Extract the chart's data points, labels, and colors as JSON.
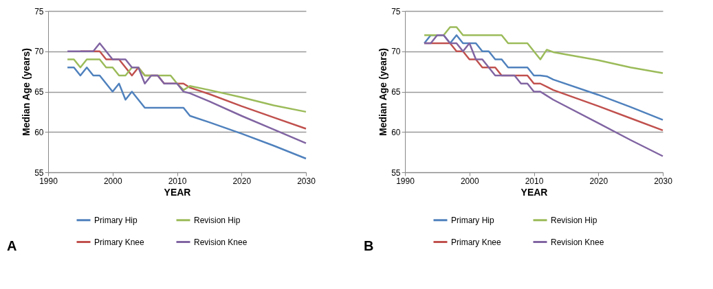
{
  "chart_data": [
    {
      "type": "line",
      "xlabel": "YEAR",
      "ylabel": "Median Age (years)",
      "xlim": [
        1990,
        2030
      ],
      "xticks": [
        1990,
        2000,
        2010,
        2020,
        2030
      ],
      "ylim": [
        55,
        75
      ],
      "yticks": [
        55,
        60,
        65,
        70,
        75
      ],
      "grid": "y",
      "legend": "bottom",
      "marker": "none",
      "line_style": "solid",
      "annotations": [
        "A"
      ],
      "x": [
        1993,
        1994,
        1995,
        1996,
        1997,
        1998,
        1999,
        2000,
        2001,
        2002,
        2003,
        2004,
        2005,
        2006,
        2007,
        2008,
        2009,
        2010,
        2011,
        2012,
        2015,
        2020,
        2025,
        2030
      ],
      "series": [
        {
          "name": "Primary Hip",
          "color": "#4f81bd",
          "values": [
            68,
            68,
            67,
            68,
            67,
            67,
            66,
            65,
            66,
            64,
            65,
            64,
            63,
            63,
            63,
            63,
            63,
            63,
            63,
            62,
            61.2,
            59.8,
            58.3,
            56.7
          ]
        },
        {
          "name": "Primary Knee",
          "color": "#c0504d",
          "values": [
            null,
            null,
            70,
            70,
            70,
            70,
            69,
            69,
            69,
            68,
            67,
            68,
            67,
            67,
            67,
            66,
            66,
            66,
            66,
            65.5,
            64.7,
            63.2,
            61.8,
            60.4
          ]
        },
        {
          "name": "Revision Hip",
          "color": "#9bbb59",
          "values": [
            69,
            69,
            68,
            69,
            69,
            69,
            68,
            68,
            67,
            67,
            68,
            68,
            67,
            67,
            67,
            67,
            67,
            66,
            65.2,
            65.7,
            65.2,
            64.3,
            63.3,
            62.5
          ]
        },
        {
          "name": "Revision Knee",
          "color": "#8064a2",
          "values": [
            70,
            70,
            70,
            70,
            70,
            71,
            70,
            69,
            69,
            69,
            68,
            68,
            66,
            67,
            67,
            66,
            66,
            66,
            65,
            64.8,
            63.8,
            62,
            60.3,
            58.6
          ]
        }
      ]
    },
    {
      "type": "line",
      "xlabel": "YEAR",
      "ylabel": "Median Age (years)",
      "xlim": [
        1990,
        2030
      ],
      "xticks": [
        1990,
        2000,
        2010,
        2020,
        2030
      ],
      "ylim": [
        55,
        75
      ],
      "yticks": [
        55,
        60,
        65,
        70,
        75
      ],
      "grid": "y",
      "legend": "bottom",
      "marker": "none",
      "line_style": "solid",
      "annotations": [
        "B"
      ],
      "x": [
        1993,
        1994,
        1995,
        1996,
        1997,
        1998,
        1999,
        2000,
        2001,
        2002,
        2003,
        2004,
        2005,
        2006,
        2007,
        2008,
        2009,
        2010,
        2011,
        2012,
        2013,
        2020,
        2025,
        2030
      ],
      "series": [
        {
          "name": "Primary Hip",
          "color": "#4f81bd",
          "values": [
            71,
            72,
            72,
            72,
            71,
            72,
            71,
            71,
            71,
            70,
            70,
            69,
            69,
            68,
            68,
            68,
            68,
            67,
            67,
            66.9,
            66.5,
            64.6,
            63.1,
            61.5
          ]
        },
        {
          "name": "Primary Knee",
          "color": "#c0504d",
          "values": [
            71,
            71,
            71,
            71,
            71,
            70,
            70,
            69,
            69,
            68,
            68,
            68,
            67,
            67,
            67,
            67,
            67,
            66,
            66,
            65.6,
            65.2,
            63.2,
            61.7,
            60.2
          ]
        },
        {
          "name": "Revision Hip",
          "color": "#9bbb59",
          "values": [
            72,
            72,
            72,
            72,
            73,
            73,
            72,
            72,
            72,
            72,
            72,
            72,
            72,
            71,
            71,
            71,
            71,
            70,
            69,
            70.2,
            69.9,
            68.9,
            68,
            67.3
          ]
        },
        {
          "name": "Revision Knee",
          "color": "#8064a2",
          "values": [
            71,
            71,
            72,
            72,
            71,
            71,
            70,
            71,
            69,
            69,
            68,
            67,
            67,
            67,
            67,
            66,
            66,
            65,
            65,
            64.5,
            64,
            61.1,
            59,
            57
          ]
        }
      ]
    }
  ]
}
